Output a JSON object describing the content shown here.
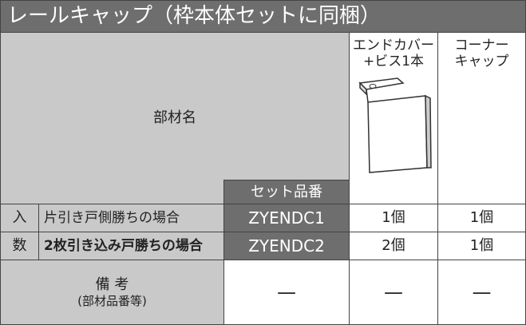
{
  "header": {
    "title": "レールキャップ（枠本体セットに同梱）"
  },
  "table": {
    "name_label": "部材名",
    "set_number_label": "セット品番",
    "columns": [
      [
        "エンドカバー",
        "+ビス1本"
      ],
      [
        "コーナー",
        "キャップ"
      ]
    ],
    "quantity_label": [
      "入",
      "数"
    ],
    "rows": [
      {
        "label": "片引き戸側勝ちの場合",
        "code": "ZYENDC1",
        "values": [
          "1個",
          "1個"
        ]
      },
      {
        "label": "2枚引き込み戸勝ちの場合",
        "code": "ZYENDC2",
        "values": [
          "2個",
          "1個"
        ]
      }
    ],
    "remarks": {
      "label": "備 考",
      "sublabel": "(部材品番等)",
      "values": [
        "—",
        "—",
        "—"
      ]
    }
  }
}
